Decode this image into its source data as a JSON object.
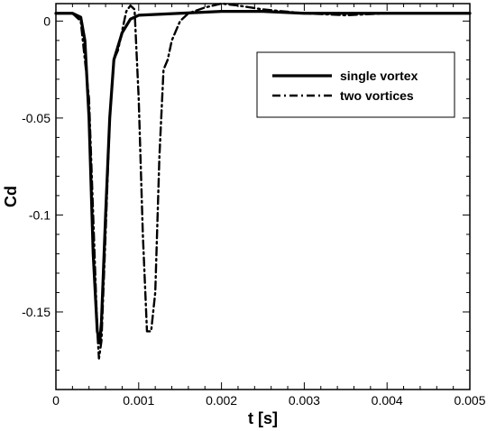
{
  "chart_data": {
    "type": "line",
    "title": "",
    "xlabel": "t [s]",
    "ylabel": "Cd",
    "xlim": [
      0,
      0.005
    ],
    "ylim": [
      -0.19,
      0.009
    ],
    "grid": false,
    "legend_position": "top-right",
    "x_ticks": [
      {
        "value": 0,
        "label": "0"
      },
      {
        "value": 0.001,
        "label": "0.001"
      },
      {
        "value": 0.002,
        "label": "0.002"
      },
      {
        "value": 0.003,
        "label": "0.003"
      },
      {
        "value": 0.004,
        "label": "0.004"
      },
      {
        "value": 0.005,
        "label": "0.005"
      }
    ],
    "y_ticks": [
      {
        "value": 0,
        "label": "0"
      },
      {
        "value": -0.05,
        "label": "-0.05"
      },
      {
        "value": -0.1,
        "label": "-0.1"
      },
      {
        "value": -0.15,
        "label": "-0.15"
      }
    ],
    "series": [
      {
        "name": "single vortex",
        "style": "solid",
        "color": "#000000",
        "x": [
          0,
          0.0002,
          0.0003,
          0.00035,
          0.0004,
          0.00045,
          0.0005,
          0.00053,
          0.00055,
          0.0006,
          0.00065,
          0.0007,
          0.0008,
          0.0009,
          0.001,
          0.0015,
          0.002,
          0.0025,
          0.003,
          0.0035,
          0.004,
          0.0045,
          0.005
        ],
        "y": [
          0.004,
          0.004,
          0.002,
          -0.01,
          -0.05,
          -0.12,
          -0.16,
          -0.166,
          -0.155,
          -0.1,
          -0.05,
          -0.02,
          -0.006,
          0.001,
          0.003,
          0.004,
          0.005,
          0.005,
          0.004,
          0.004,
          0.004,
          0.004,
          0.004
        ]
      },
      {
        "name": "two vortices",
        "style": "dashdot",
        "color": "#000000",
        "x": [
          0,
          0.0002,
          0.0003,
          0.0004,
          0.00045,
          0.0005,
          0.00052,
          0.00055,
          0.0006,
          0.00065,
          0.0007,
          0.00075,
          0.0008,
          0.00085,
          0.0009,
          0.00095,
          0.001,
          0.00105,
          0.0011,
          0.00115,
          0.0012,
          0.00125,
          0.0013,
          0.00135,
          0.0014,
          0.0015,
          0.0016,
          0.0018,
          0.002,
          0.0022,
          0.0025,
          0.003,
          0.0035,
          0.004,
          0.0045,
          0.005
        ],
        "y": [
          0.004,
          0.004,
          0.0,
          -0.04,
          -0.1,
          -0.16,
          -0.174,
          -0.165,
          -0.11,
          -0.05,
          -0.02,
          -0.015,
          -0.005,
          0.005,
          0.008,
          0.006,
          -0.04,
          -0.11,
          -0.16,
          -0.16,
          -0.14,
          -0.07,
          -0.025,
          -0.02,
          -0.01,
          0.0,
          0.004,
          0.007,
          0.009,
          0.008,
          0.006,
          0.004,
          0.003,
          0.004,
          0.004,
          0.004
        ]
      }
    ]
  }
}
